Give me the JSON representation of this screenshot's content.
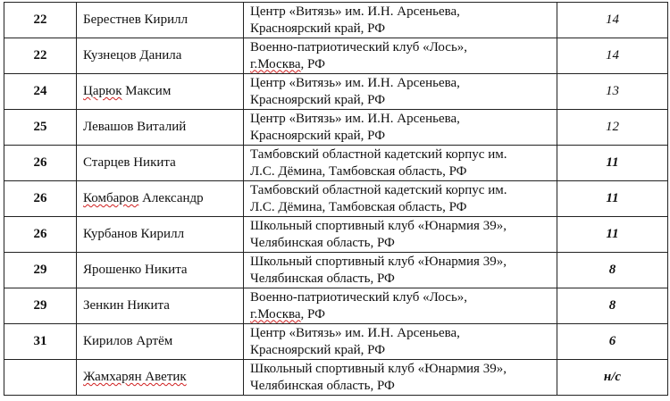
{
  "rows": [
    {
      "place": "22",
      "name": "Берестнев Кирилл",
      "org1": "Центр «Витязь» им. И.Н. Арсеньева,",
      "org2a": "",
      "org2b": "Красноярский край, РФ",
      "score": "14",
      "bold": false,
      "name_flag": false
    },
    {
      "place": "22",
      "name": "Кузнецов Данила",
      "org1": "Военно-патриотический клуб «Лось»,",
      "org2a": "г.Москва",
      "org2b": ", РФ",
      "score": "14",
      "bold": false,
      "name_flag": false
    },
    {
      "place": "24",
      "name": "Царюк",
      "name_rest": " Максим",
      "org1": "Центр «Витязь» им. И.Н. Арсеньева,",
      "org2a": "",
      "org2b": "Красноярский край, РФ",
      "score": "13",
      "bold": false,
      "name_flag": true
    },
    {
      "place": "25",
      "name": "Левашов Виталий",
      "org1": "Центр «Витязь» им. И.Н. Арсеньева,",
      "org2a": "",
      "org2b": "Красноярский край, РФ",
      "score": "12",
      "bold": false,
      "name_flag": false
    },
    {
      "place": "26",
      "name": "Старцев Никита",
      "org1": "Тамбовский областной кадетский корпус им.",
      "org2a": "",
      "org2b": "Л.С. Дёмина, Тамбовская область, РФ",
      "score": "11",
      "bold": true,
      "name_flag": false
    },
    {
      "place": "26",
      "name": "Комбаров",
      "name_rest": " Александр",
      "org1": "Тамбовский областной кадетский корпус им.",
      "org2a": "",
      "org2b": "Л.С. Дёмина, Тамбовская область, РФ",
      "score": "11",
      "bold": true,
      "name_flag": true
    },
    {
      "place": "26",
      "name": "Курбанов Кирилл",
      "org1": "Школьный спортивный клуб «Юнармия 39»,",
      "org2a": "",
      "org2b": "Челябинская область, РФ",
      "score": "11",
      "bold": true,
      "name_flag": false
    },
    {
      "place": "29",
      "name": "Ярошенко Никита",
      "org1": "Школьный спортивный клуб «Юнармия 39»,",
      "org2a": "",
      "org2b": "Челябинская область, РФ",
      "score": "8",
      "bold": true,
      "name_flag": false
    },
    {
      "place": "29",
      "name": "Зенкин Никита",
      "org1": "Военно-патриотический клуб «Лось»,",
      "org2a": "г.Москва",
      "org2b": ", РФ",
      "score": "8",
      "bold": true,
      "name_flag": false
    },
    {
      "place": "31",
      "name": "Кирилов Артём",
      "org1": "Центр «Витязь» им. И.Н. Арсеньева,",
      "org2a": "",
      "org2b": "Красноярский край, РФ",
      "score": "6",
      "bold": true,
      "name_flag": false
    },
    {
      "place": "",
      "name": "Жамхарян Аветик",
      "org1": "Школьный спортивный клуб «Юнармия 39»,",
      "org2a": "",
      "org2b": "Челябинская область, РФ",
      "score": "н/с",
      "bold": true,
      "name_flag": true
    }
  ]
}
